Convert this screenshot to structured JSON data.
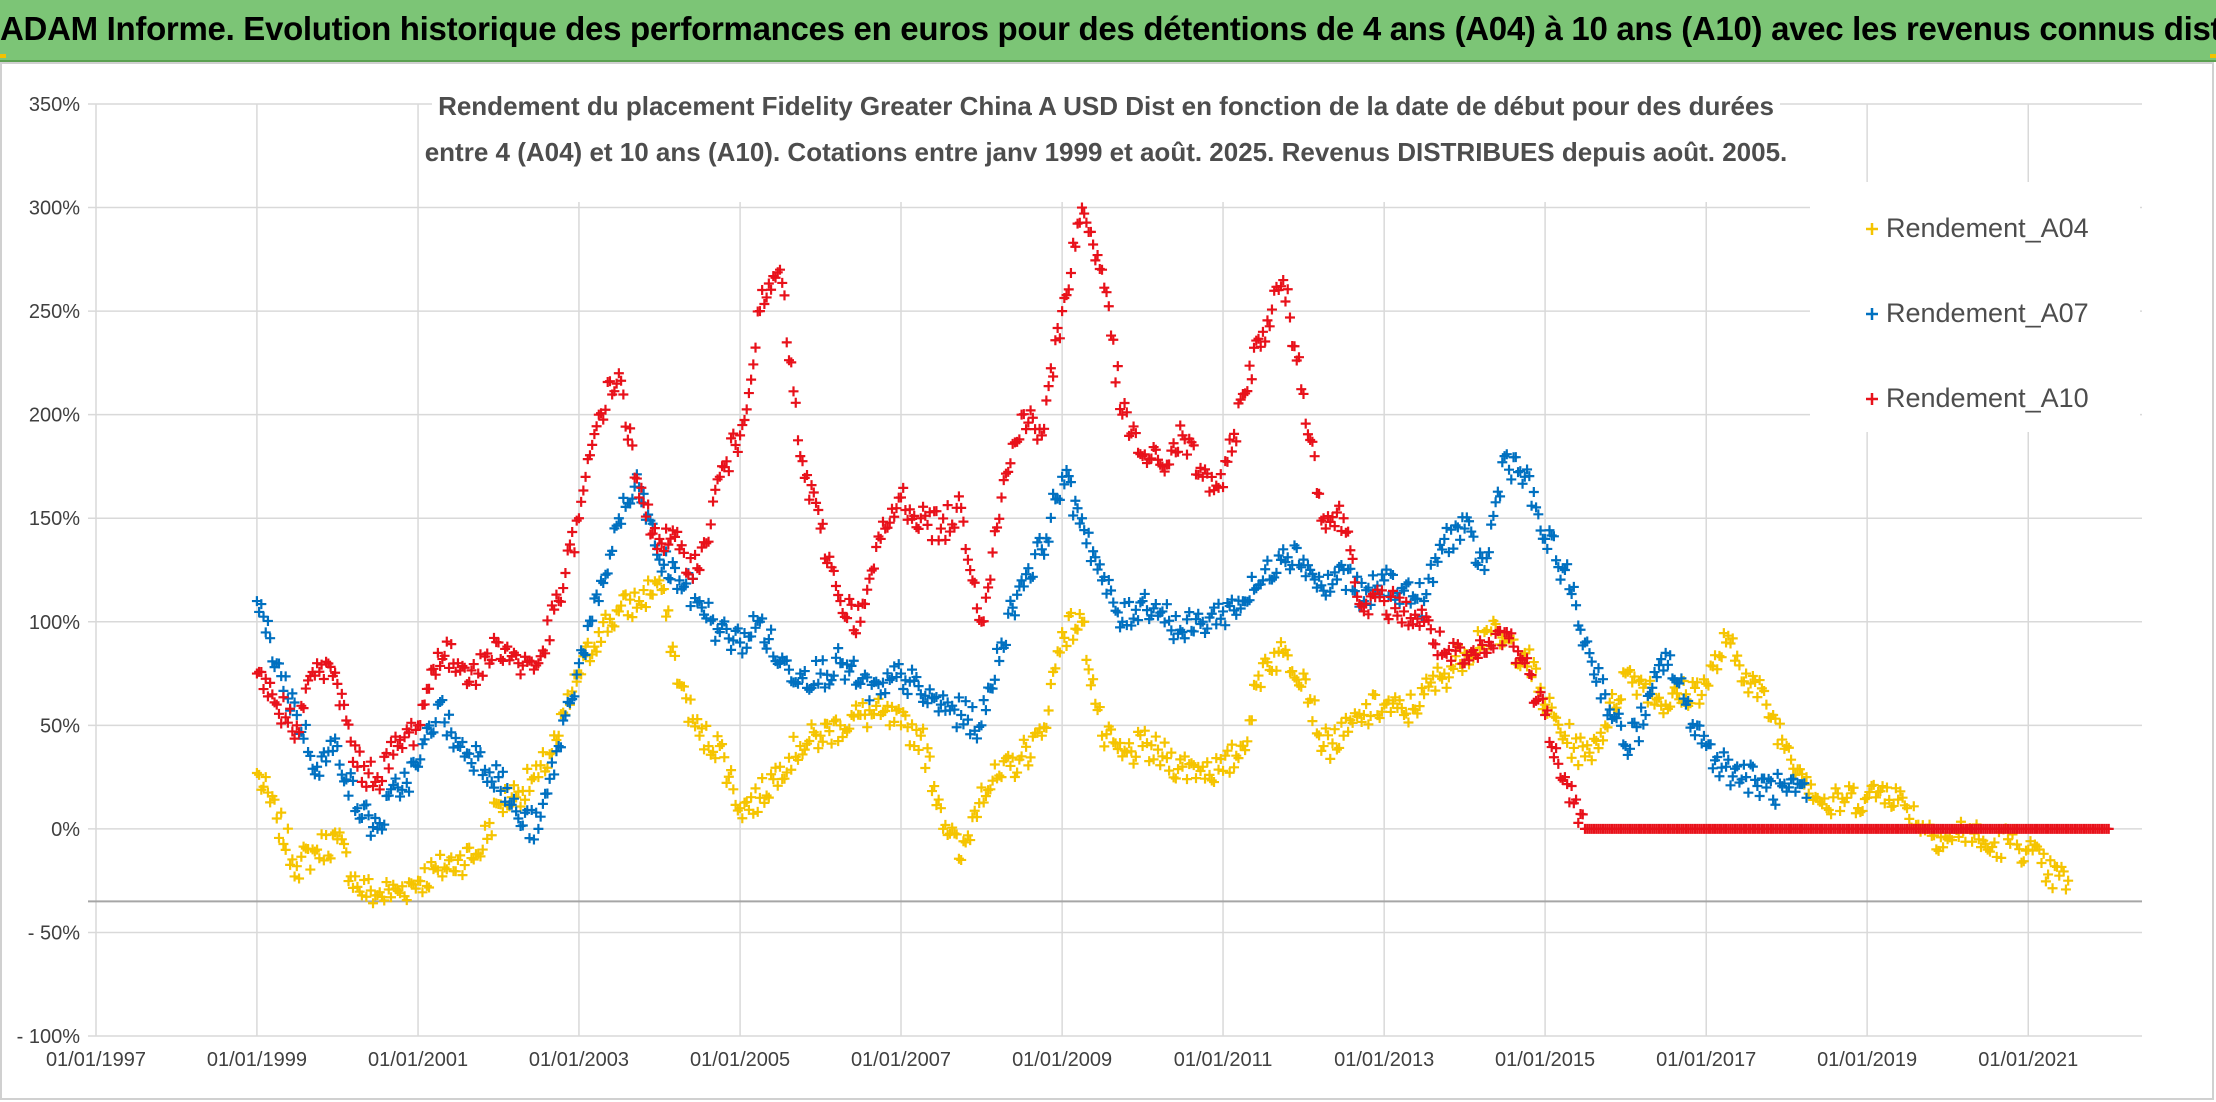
{
  "banner": {
    "title": "ADAM Informe. Evolution historique des performances en euros pour des détentions de 4 ans (A04) à 10 ans (A10) avec les revenus connus distribués"
  },
  "chart_data": {
    "type": "scatter",
    "title_lines": [
      "Rendement du placement Fidelity Greater China A USD Dist en fonction de la date de début pour des durées",
      "entre 4 (A04) et 10 ans (A10). Cotations entre janv 1999 et août. 2025. Revenus DISTRIBUES depuis août. 2005."
    ],
    "x_type": "date",
    "xlim": [
      "1997-01-01",
      "2022-06-01"
    ],
    "x_ticks": [
      "1997-01-01",
      "1999-01-01",
      "2001-01-01",
      "2003-01-01",
      "2005-01-01",
      "2007-01-01",
      "2009-01-01",
      "2011-01-01",
      "2013-01-01",
      "2015-01-01",
      "2017-01-01",
      "2019-01-01",
      "2021-01-01"
    ],
    "x_tick_labels": [
      "01/01/1997",
      "01/01/1999",
      "01/01/2001",
      "01/01/2003",
      "01/01/2005",
      "01/01/2007",
      "01/01/2009",
      "01/01/2011",
      "01/01/2013",
      "01/01/2015",
      "01/01/2017",
      "01/01/2019",
      "01/01/2021"
    ],
    "ylim": [
      -100,
      350
    ],
    "y_unit": "%",
    "y_ticks": [
      -100,
      -50,
      0,
      50,
      100,
      150,
      200,
      250,
      300,
      350
    ],
    "y_tick_labels": [
      "- 100%",
      "- 50%",
      "0%",
      "50%",
      "100%",
      "150%",
      "200%",
      "250%",
      "300%",
      "350%"
    ],
    "reference_line_y": -35,
    "grid": true,
    "legend_position": "right",
    "marker": "+",
    "series": [
      {
        "name": "Rendement_A04",
        "color": "#f5c400",
        "x": [
          "1999-01-01",
          "1999-04-01",
          "1999-07-01",
          "1999-10-01",
          "2000-01-01",
          "2000-04-01",
          "2000-07-01",
          "2000-10-01",
          "2001-01-01",
          "2001-04-01",
          "2001-07-01",
          "2001-10-01",
          "2002-01-01",
          "2002-04-01",
          "2002-07-01",
          "2002-10-01",
          "2003-01-01",
          "2003-04-01",
          "2003-07-01",
          "2003-10-01",
          "2004-01-01",
          "2004-04-01",
          "2004-07-01",
          "2004-10-01",
          "2005-01-01",
          "2005-04-01",
          "2005-07-01",
          "2005-10-01",
          "2006-01-01",
          "2006-04-01",
          "2006-07-01",
          "2006-10-01",
          "2007-01-01",
          "2007-04-01",
          "2007-07-01",
          "2007-10-01",
          "2008-01-01",
          "2008-04-01",
          "2008-07-01",
          "2008-10-01",
          "2009-01-01",
          "2009-04-01",
          "2009-07-01",
          "2009-10-01",
          "2010-01-01",
          "2010-04-01",
          "2010-07-01",
          "2010-10-01",
          "2011-01-01",
          "2011-04-01",
          "2011-07-01",
          "2011-10-01",
          "2012-01-01",
          "2012-04-01",
          "2012-07-01",
          "2012-10-01",
          "2013-01-01",
          "2013-04-01",
          "2013-07-01",
          "2013-10-01",
          "2014-01-01",
          "2014-04-01",
          "2014-07-01",
          "2014-10-01",
          "2015-01-01",
          "2015-04-01",
          "2015-07-01",
          "2015-10-01",
          "2016-01-01",
          "2016-04-01",
          "2016-07-01",
          "2016-10-01",
          "2017-01-01",
          "2017-04-01",
          "2017-07-01",
          "2017-10-01",
          "2018-01-01",
          "2018-04-01",
          "2018-07-01",
          "2018-10-01",
          "2019-01-01",
          "2019-04-01",
          "2019-07-01",
          "2019-10-01",
          "2020-01-01",
          "2020-04-01",
          "2020-07-01",
          "2020-10-01",
          "2021-01-01",
          "2021-04-01",
          "2021-07-01"
        ],
        "y": [
          27,
          5,
          -18,
          -10,
          -5,
          -28,
          -32,
          -30,
          -25,
          -20,
          -15,
          -12,
          12,
          18,
          25,
          45,
          75,
          95,
          105,
          110,
          120,
          70,
          45,
          40,
          10,
          15,
          30,
          40,
          45,
          50,
          55,
          55,
          50,
          45,
          10,
          -15,
          20,
          25,
          35,
          45,
          95,
          100,
          45,
          35,
          40,
          35,
          30,
          30,
          28,
          40,
          80,
          85,
          75,
          40,
          45,
          55,
          60,
          55,
          65,
          75,
          85,
          95,
          90,
          85,
          60,
          45,
          35,
          50,
          75,
          70,
          60,
          65,
          70,
          90,
          75,
          60,
          40,
          25,
          10,
          15,
          15,
          20,
          10,
          0,
          -5,
          0,
          -10,
          -5,
          -10,
          -22,
          -25
        ]
      },
      {
        "name": "Rendement_A07",
        "color": "#0070c0",
        "x": [
          "1999-01-01",
          "1999-04-01",
          "1999-07-01",
          "1999-10-01",
          "2000-01-01",
          "2000-04-01",
          "2000-07-01",
          "2000-10-01",
          "2001-01-01",
          "2001-04-01",
          "2001-07-01",
          "2001-10-01",
          "2002-01-01",
          "2002-04-01",
          "2002-07-01",
          "2002-10-01",
          "2003-01-01",
          "2003-04-01",
          "2003-07-01",
          "2003-10-01",
          "2004-01-01",
          "2004-04-01",
          "2004-07-01",
          "2004-10-01",
          "2005-01-01",
          "2005-04-01",
          "2005-07-01",
          "2005-10-01",
          "2006-01-01",
          "2006-04-01",
          "2006-07-01",
          "2006-10-01",
          "2007-01-01",
          "2007-04-01",
          "2007-07-01",
          "2007-10-01",
          "2008-01-01",
          "2008-04-01",
          "2008-07-01",
          "2008-10-01",
          "2009-01-01",
          "2009-04-01",
          "2009-07-01",
          "2009-10-01",
          "2010-01-01",
          "2010-04-01",
          "2010-07-01",
          "2010-10-01",
          "2011-01-01",
          "2011-04-01",
          "2011-07-01",
          "2011-10-01",
          "2012-01-01",
          "2012-04-01",
          "2012-07-01",
          "2012-10-01",
          "2013-01-01",
          "2013-04-01",
          "2013-07-01",
          "2013-10-01",
          "2014-01-01",
          "2014-04-01",
          "2014-07-01",
          "2014-10-01",
          "2015-01-01",
          "2015-04-01",
          "2015-07-01",
          "2015-10-01",
          "2016-01-01",
          "2016-04-01",
          "2016-07-01",
          "2016-10-01",
          "2017-01-01",
          "2017-04-01",
          "2017-07-01",
          "2017-10-01",
          "2018-01-01",
          "2018-04-01"
        ],
        "y": [
          110,
          80,
          55,
          30,
          40,
          10,
          0,
          20,
          30,
          60,
          40,
          35,
          25,
          5,
          0,
          40,
          80,
          110,
          150,
          165,
          130,
          120,
          110,
          95,
          90,
          100,
          80,
          75,
          75,
          80,
          70,
          65,
          75,
          65,
          60,
          55,
          50,
          90,
          120,
          135,
          170,
          150,
          120,
          100,
          110,
          105,
          95,
          100,
          105,
          110,
          120,
          135,
          130,
          115,
          125,
          110,
          120,
          115,
          110,
          140,
          145,
          125,
          180,
          170,
          140,
          125,
          90,
          65,
          40,
          55,
          85,
          60,
          40,
          30,
          25,
          20,
          18,
          15
        ]
      },
      {
        "name": "Rendement_A10",
        "color": "#e8111a",
        "x": [
          "1999-01-01",
          "1999-04-01",
          "1999-07-01",
          "1999-10-01",
          "2000-01-01",
          "2000-04-01",
          "2000-07-01",
          "2000-10-01",
          "2001-01-01",
          "2001-04-01",
          "2001-07-01",
          "2001-10-01",
          "2002-01-01",
          "2002-04-01",
          "2002-07-01",
          "2002-10-01",
          "2003-01-01",
          "2003-04-01",
          "2003-07-01",
          "2003-10-01",
          "2004-01-01",
          "2004-04-01",
          "2004-07-01",
          "2004-10-01",
          "2005-01-01",
          "2005-04-01",
          "2005-07-01",
          "2005-10-01",
          "2006-01-01",
          "2006-04-01",
          "2006-07-01",
          "2006-10-01",
          "2007-01-01",
          "2007-04-01",
          "2007-07-01",
          "2007-10-01",
          "2008-01-01",
          "2008-04-01",
          "2008-07-01",
          "2008-10-01",
          "2009-01-01",
          "2009-04-01",
          "2009-07-01",
          "2009-10-01",
          "2010-01-01",
          "2010-04-01",
          "2010-07-01",
          "2010-10-01",
          "2011-01-01",
          "2011-04-01",
          "2011-07-01",
          "2011-10-01",
          "2012-01-01",
          "2012-04-01",
          "2012-07-01",
          "2012-10-01",
          "2013-01-01",
          "2013-04-01",
          "2013-07-01",
          "2013-10-01",
          "2014-01-01",
          "2014-04-01",
          "2014-07-01",
          "2014-10-01",
          "2015-01-01",
          "2015-04-01",
          "2015-07-01",
          "2015-10-01",
          "2016-01-01",
          "2016-04-01",
          "2016-07-01",
          "2016-10-01",
          "2017-01-01",
          "2017-04-01",
          "2017-07-01",
          "2017-10-01",
          "2018-01-01",
          "2018-04-01",
          "2018-07-01",
          "2018-10-01",
          "2019-01-01",
          "2019-04-01",
          "2019-07-01",
          "2019-10-01",
          "2020-01-01",
          "2020-04-01",
          "2020-07-01",
          "2020-10-01",
          "2021-01-01",
          "2021-04-01",
          "2021-07-01",
          "2021-10-01",
          "2022-01-01"
        ],
        "y": [
          75,
          60,
          50,
          80,
          70,
          30,
          25,
          40,
          50,
          85,
          80,
          75,
          90,
          80,
          80,
          110,
          150,
          200,
          220,
          160,
          140,
          135,
          125,
          170,
          190,
          250,
          270,
          180,
          145,
          110,
          100,
          140,
          160,
          150,
          145,
          155,
          100,
          160,
          200,
          190,
          250,
          300,
          270,
          200,
          180,
          175,
          190,
          170,
          165,
          210,
          240,
          265,
          210,
          150,
          150,
          105,
          110,
          105,
          100,
          85,
          80,
          85,
          95,
          80,
          55,
          25,
          0,
          0,
          0,
          0,
          0,
          0,
          0,
          0,
          0,
          0,
          0,
          0,
          0,
          0,
          0,
          0,
          0,
          0,
          0,
          0,
          0,
          0,
          0,
          0,
          0,
          0,
          0
        ]
      }
    ]
  }
}
